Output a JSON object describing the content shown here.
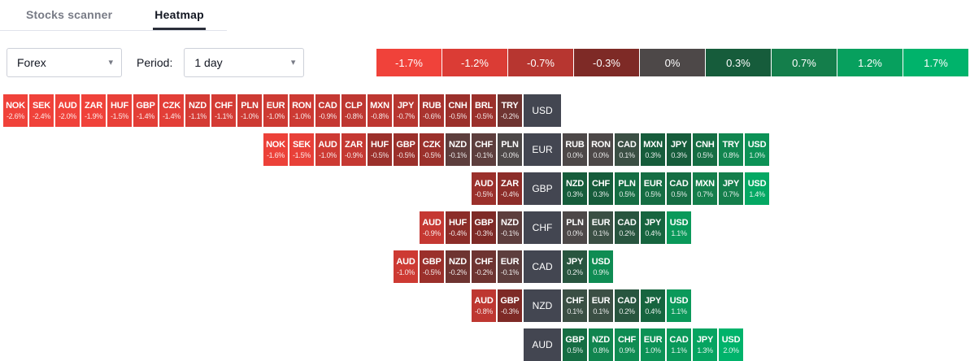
{
  "tabs": [
    {
      "label": "Stocks scanner",
      "active": false
    },
    {
      "label": "Heatmap",
      "active": true
    }
  ],
  "controls": {
    "market": "Forex",
    "period_label": "Period:",
    "period": "1 day"
  },
  "chart_data": {
    "type": "heatmap",
    "legend": [
      {
        "label": "-1.7%",
        "color": "#f0423a"
      },
      {
        "label": "-1.2%",
        "color": "#db3c35"
      },
      {
        "label": "-0.7%",
        "color": "#b73630"
      },
      {
        "label": "-0.3%",
        "color": "#7e2a26"
      },
      {
        "label": "0%",
        "color": "#4d4848"
      },
      {
        "label": "0.3%",
        "color": "#165c3b"
      },
      {
        "label": "0.7%",
        "color": "#147e4b"
      },
      {
        "label": "1.2%",
        "color": "#07a05e"
      },
      {
        "label": "1.7%",
        "color": "#00b36b"
      }
    ],
    "base_cell_color": "#434651",
    "color_anchors": [
      {
        "v": -1.7,
        "rgb": [
          240,
          66,
          58
        ]
      },
      {
        "v": -1.2,
        "rgb": [
          219,
          60,
          53
        ]
      },
      {
        "v": -0.7,
        "rgb": [
          183,
          54,
          48
        ]
      },
      {
        "v": -0.3,
        "rgb": [
          126,
          42,
          38
        ]
      },
      {
        "v": 0,
        "rgb": [
          77,
          72,
          72
        ]
      },
      {
        "v": 0.3,
        "rgb": [
          22,
          92,
          59
        ]
      },
      {
        "v": 0.7,
        "rgb": [
          20,
          126,
          75
        ]
      },
      {
        "v": 1.2,
        "rgb": [
          7,
          160,
          94
        ]
      },
      {
        "v": 1.7,
        "rgb": [
          0,
          179,
          107
        ]
      }
    ],
    "rows": [
      {
        "base": "USD",
        "left": [
          [
            "NOK",
            "-2.6%"
          ],
          [
            "SEK",
            "-2.4%"
          ],
          [
            "AUD",
            "-2.0%"
          ],
          [
            "ZAR",
            "-1.9%"
          ],
          [
            "HUF",
            "-1.5%"
          ],
          [
            "GBP",
            "-1.4%"
          ],
          [
            "CZK",
            "-1.4%"
          ],
          [
            "NZD",
            "-1.1%"
          ],
          [
            "CHF",
            "-1.1%"
          ],
          [
            "PLN",
            "-1.0%"
          ],
          [
            "EUR",
            "-1.0%"
          ],
          [
            "RON",
            "-1.0%"
          ],
          [
            "CAD",
            "-0.9%"
          ],
          [
            "CLP",
            "-0.8%"
          ],
          [
            "MXN",
            "-0.8%"
          ],
          [
            "JPY",
            "-0.7%"
          ],
          [
            "RUB",
            "-0.6%"
          ],
          [
            "CNH",
            "-0.5%"
          ],
          [
            "BRL",
            "-0.5%"
          ],
          [
            "TRY",
            "-0.2%"
          ]
        ],
        "right": []
      },
      {
        "base": "EUR",
        "left": [
          [
            "NOK",
            "-1.6%"
          ],
          [
            "SEK",
            "-1.5%"
          ],
          [
            "AUD",
            "-1.0%"
          ],
          [
            "ZAR",
            "-0.9%"
          ],
          [
            "HUF",
            "-0.5%"
          ],
          [
            "GBP",
            "-0.5%"
          ],
          [
            "CZK",
            "-0.5%"
          ],
          [
            "NZD",
            "-0.1%"
          ],
          [
            "CHF",
            "-0.1%"
          ],
          [
            "PLN",
            "-0.0%"
          ]
        ],
        "right": [
          [
            "RUB",
            "0.0%"
          ],
          [
            "RON",
            "0.0%"
          ],
          [
            "CAD",
            "0.1%"
          ],
          [
            "MXN",
            "0.3%"
          ],
          [
            "JPY",
            "0.3%"
          ],
          [
            "CNH",
            "0.5%"
          ],
          [
            "TRY",
            "0.8%"
          ],
          [
            "USD",
            "1.0%"
          ]
        ]
      },
      {
        "base": "GBP",
        "left": [
          [
            "AUD",
            "-0.5%"
          ],
          [
            "ZAR",
            "-0.4%"
          ]
        ],
        "right": [
          [
            "NZD",
            "0.3%"
          ],
          [
            "CHF",
            "0.3%"
          ],
          [
            "PLN",
            "0.5%"
          ],
          [
            "EUR",
            "0.5%"
          ],
          [
            "CAD",
            "0.5%"
          ],
          [
            "MXN",
            "0.7%"
          ],
          [
            "JPY",
            "0.7%"
          ],
          [
            "USD",
            "1.4%"
          ]
        ]
      },
      {
        "base": "CHF",
        "left": [
          [
            "AUD",
            "-0.9%"
          ],
          [
            "HUF",
            "-0.4%"
          ],
          [
            "GBP",
            "-0.3%"
          ],
          [
            "NZD",
            "-0.1%"
          ]
        ],
        "right": [
          [
            "PLN",
            "0.0%"
          ],
          [
            "EUR",
            "0.1%"
          ],
          [
            "CAD",
            "0.2%"
          ],
          [
            "JPY",
            "0.4%"
          ],
          [
            "USD",
            "1.1%"
          ]
        ]
      },
      {
        "base": "CAD",
        "left": [
          [
            "AUD",
            "-1.0%"
          ],
          [
            "GBP",
            "-0.5%"
          ],
          [
            "NZD",
            "-0.2%"
          ],
          [
            "CHF",
            "-0.2%"
          ],
          [
            "EUR",
            "-0.1%"
          ]
        ],
        "right": [
          [
            "JPY",
            "0.2%"
          ],
          [
            "USD",
            "0.9%"
          ]
        ]
      },
      {
        "base": "NZD",
        "left": [
          [
            "AUD",
            "-0.8%"
          ],
          [
            "GBP",
            "-0.3%"
          ]
        ],
        "right": [
          [
            "CHF",
            "0.1%"
          ],
          [
            "EUR",
            "0.1%"
          ],
          [
            "CAD",
            "0.2%"
          ],
          [
            "JPY",
            "0.4%"
          ],
          [
            "USD",
            "1.1%"
          ]
        ]
      },
      {
        "base": "AUD",
        "left": [],
        "right": [
          [
            "GBP",
            "0.5%"
          ],
          [
            "NZD",
            "0.8%"
          ],
          [
            "CHF",
            "0.9%"
          ],
          [
            "EUR",
            "1.0%"
          ],
          [
            "CAD",
            "1.1%"
          ],
          [
            "JPY",
            "1.3%"
          ],
          [
            "USD",
            "2.0%"
          ]
        ]
      }
    ]
  }
}
